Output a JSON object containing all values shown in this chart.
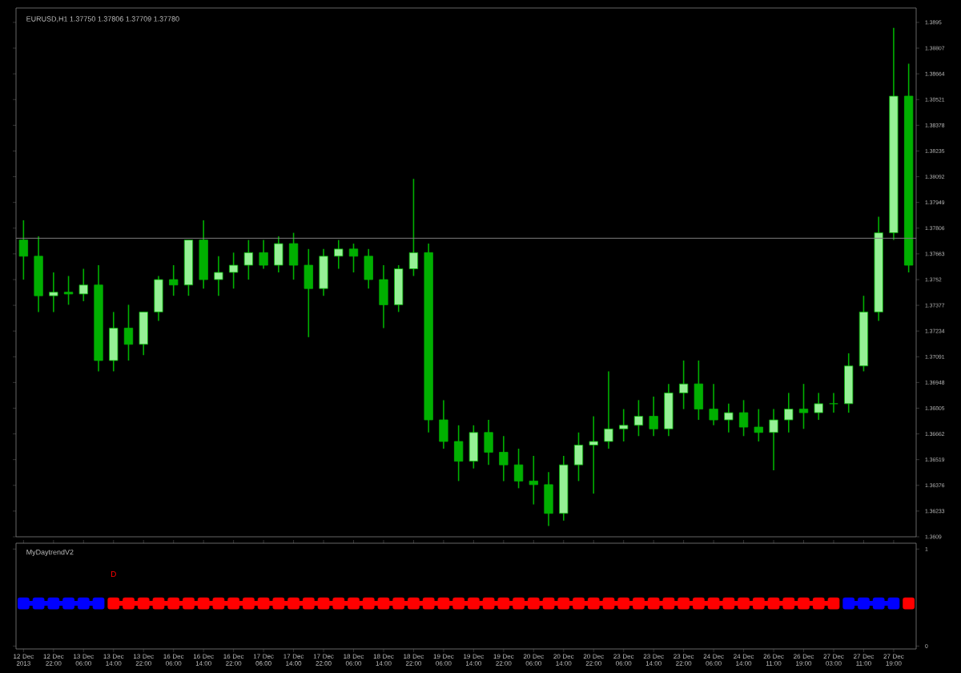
{
  "chart_data": [
    {
      "type": "candlestick",
      "title": "EURUSD,H1 1.37750 1.37806 1.37709 1.37780",
      "color": "#00b000",
      "tick_labels": "y",
      "ylim": [
        1.3609,
        1.3903
      ],
      "yticks": [
        1.3609,
        1.36233,
        1.36376,
        1.36519,
        1.36662,
        1.36805,
        1.36948,
        1.37091,
        1.37234,
        1.37377,
        1.3752,
        1.37663,
        1.37806,
        1.37949,
        1.38092,
        1.38235,
        1.38378,
        1.38521,
        1.38664,
        1.38807,
        1.3895
      ],
      "ref_lines": [
        {
          "axis": "y",
          "value": 1.3775,
          "color": "#808080"
        }
      ],
      "categories": [
        null,
        null,
        null,
        null,
        null,
        null,
        null,
        null,
        null,
        null,
        null,
        null,
        null,
        null,
        null,
        null,
        null,
        null,
        null,
        null,
        null,
        null,
        null,
        null,
        null,
        null,
        null,
        null,
        null,
        null,
        null,
        null,
        null,
        null,
        null,
        null,
        null,
        null,
        null,
        null,
        null,
        null,
        null,
        null,
        null,
        null,
        null,
        null,
        null,
        null,
        null,
        null,
        null,
        null,
        null,
        null,
        null,
        null,
        null,
        null
      ],
      "ohlc": [
        [
          1.3774,
          1.3785,
          1.3752,
          1.3765
        ],
        [
          1.3765,
          1.3776,
          1.3734,
          1.3743
        ],
        [
          1.3743,
          1.3756,
          1.3734,
          1.3745
        ],
        [
          1.3745,
          1.3754,
          1.3738,
          1.3744
        ],
        [
          1.3744,
          1.3758,
          1.374,
          1.3749
        ],
        [
          1.3749,
          1.376,
          1.3701,
          1.3707
        ],
        [
          1.3707,
          1.3734,
          1.3701,
          1.3725
        ],
        [
          1.3725,
          1.3738,
          1.3707,
          1.3716
        ],
        [
          1.3716,
          1.3734,
          1.371,
          1.3734
        ],
        [
          1.3734,
          1.3754,
          1.3729,
          1.3752
        ],
        [
          1.3752,
          1.376,
          1.3743,
          1.3749
        ],
        [
          1.3749,
          1.3774,
          1.3743,
          1.3774
        ],
        [
          1.3774,
          1.3785,
          1.3747,
          1.3752
        ],
        [
          1.3752,
          1.3765,
          1.3743,
          1.3756
        ],
        [
          1.3756,
          1.3767,
          1.3747,
          1.376
        ],
        [
          1.376,
          1.3774,
          1.3752,
          1.3767
        ],
        [
          1.3767,
          1.3774,
          1.3758,
          1.376
        ],
        [
          1.376,
          1.3776,
          1.3756,
          1.3772
        ],
        [
          1.3772,
          1.3778,
          1.3752,
          1.376
        ],
        [
          1.376,
          1.3769,
          1.372,
          1.3747
        ],
        [
          1.3747,
          1.3769,
          1.3743,
          1.3765
        ],
        [
          1.3765,
          1.3774,
          1.3758,
          1.3769
        ],
        [
          1.3769,
          1.3772,
          1.3756,
          1.3765
        ],
        [
          1.3765,
          1.3769,
          1.3747,
          1.3752
        ],
        [
          1.3752,
          1.376,
          1.3725,
          1.3738
        ],
        [
          1.3738,
          1.376,
          1.3734,
          1.3758
        ],
        [
          1.3758,
          1.3808,
          1.3754,
          1.3767
        ],
        [
          1.3767,
          1.3772,
          1.3667,
          1.3674
        ],
        [
          1.3674,
          1.3685,
          1.3658,
          1.3662
        ],
        [
          1.3662,
          1.3671,
          1.364,
          1.3651
        ],
        [
          1.3651,
          1.3671,
          1.3647,
          1.3667
        ],
        [
          1.3667,
          1.3674,
          1.3649,
          1.3656
        ],
        [
          1.3656,
          1.3665,
          1.364,
          1.3649
        ],
        [
          1.3649,
          1.3658,
          1.3636,
          1.364
        ],
        [
          1.364,
          1.3654,
          1.3627,
          1.3638
        ],
        [
          1.3638,
          1.3645,
          1.3615,
          1.3622
        ],
        [
          1.3622,
          1.3654,
          1.3618,
          1.3649
        ],
        [
          1.3649,
          1.3667,
          1.364,
          1.366
        ],
        [
          1.366,
          1.3676,
          1.3633,
          1.3662
        ],
        [
          1.3662,
          1.3701,
          1.3658,
          1.3669
        ],
        [
          1.3669,
          1.368,
          1.3662,
          1.3671
        ],
        [
          1.3671,
          1.3685,
          1.3665,
          1.3676
        ],
        [
          1.3676,
          1.3687,
          1.3665,
          1.3669
        ],
        [
          1.3669,
          1.3694,
          1.3665,
          1.3689
        ],
        [
          1.3689,
          1.3707,
          1.368,
          1.3694
        ],
        [
          1.3694,
          1.3707,
          1.3674,
          1.368
        ],
        [
          1.368,
          1.3694,
          1.3671,
          1.3674
        ],
        [
          1.3674,
          1.3683,
          1.3667,
          1.3678
        ],
        [
          1.3678,
          1.3685,
          1.3665,
          1.367
        ],
        [
          1.367,
          1.368,
          1.3662,
          1.3667
        ],
        [
          1.3667,
          1.368,
          1.3646,
          1.3674
        ],
        [
          1.3674,
          1.3689,
          1.3667,
          1.368
        ],
        [
          1.368,
          1.3694,
          1.3669,
          1.3678
        ],
        [
          1.3678,
          1.3689,
          1.3674,
          1.3683
        ],
        [
          1.3683,
          1.3689,
          1.3678,
          1.3683
        ],
        [
          1.3683,
          1.3711,
          1.3678,
          1.3704
        ],
        [
          1.3704,
          1.3743,
          1.3701,
          1.3734
        ],
        [
          1.3734,
          1.3787,
          1.3729,
          1.3778
        ],
        [
          1.3778,
          1.3892,
          1.3774,
          1.3854
        ],
        [
          1.3854,
          1.3872,
          1.3756,
          1.376
        ]
      ]
    },
    {
      "type": "line",
      "title": "MyDaytrendV2",
      "ylim": [
        -0.03,
        1.06
      ],
      "yticks": [
        0,
        1
      ],
      "annotations": [
        "D"
      ],
      "marker": "square",
      "categories": [
        "12 Dec 2013",
        null,
        "12 Dec 22:00",
        null,
        "13 Dec 06:00",
        null,
        "13 Dec 14:00",
        null,
        "13 Dec 22:00",
        null,
        "16 Dec 06:00",
        null,
        "16 Dec 14:00",
        null,
        "16 Dec 22:00",
        null,
        "17 Dec 06:00",
        null,
        "17 Dec 14:00",
        null,
        "17 Dec 22:00",
        null,
        "18 Dec 06:00",
        null,
        "18 Dec 14:00",
        null,
        "18 Dec 22:00",
        null,
        "19 Dec 06:00",
        null,
        "19 Dec 14:00",
        null,
        "19 Dec 22:00",
        null,
        "20 Dec 06:00",
        null,
        "20 Dec 14:00",
        null,
        "20 Dec 22:00",
        null,
        "23 Dec 06:00",
        null,
        "23 Dec 14:00",
        null,
        "23 Dec 22:00",
        null,
        "24 Dec 06:00",
        null,
        "24 Dec 14:00",
        null,
        "26 Dec 11:00",
        null,
        "26 Dec 19:00",
        null,
        "27 Dec 03:00",
        null,
        "27 Dec 11:00",
        null,
        "27 Dec 19:00",
        null
      ],
      "series": [
        {
          "color": "#0000ff",
          "values": [
            0.44,
            0.44,
            0.44,
            0.44,
            0.44,
            0.44,
            null,
            null,
            null,
            null,
            null,
            null,
            null,
            null,
            null,
            null,
            null,
            null,
            null,
            null,
            null,
            null,
            null,
            null,
            null,
            null,
            null,
            null,
            null,
            null,
            null,
            null,
            null,
            null,
            null,
            null,
            null,
            null,
            null,
            null,
            null,
            null,
            null,
            null,
            null,
            null,
            null,
            null,
            null,
            null,
            null,
            null,
            null,
            null,
            null,
            0.44,
            0.44,
            0.44,
            0.44,
            null
          ]
        },
        {
          "color": "#ff0000",
          "values": [
            null,
            null,
            null,
            null,
            null,
            null,
            0.44,
            0.44,
            0.44,
            0.44,
            0.44,
            0.44,
            0.44,
            0.44,
            0.44,
            0.44,
            0.44,
            0.44,
            0.44,
            0.44,
            0.44,
            0.44,
            0.44,
            0.44,
            0.44,
            0.44,
            0.44,
            0.44,
            0.44,
            0.44,
            0.44,
            0.44,
            0.44,
            0.44,
            0.44,
            0.44,
            0.44,
            0.44,
            0.44,
            0.44,
            0.44,
            0.44,
            0.44,
            0.44,
            0.44,
            0.44,
            0.44,
            0.44,
            0.44,
            0.44,
            0.44,
            0.44,
            0.44,
            0.44,
            0.44,
            null,
            null,
            null,
            null,
            0.44
          ]
        }
      ]
    }
  ]
}
